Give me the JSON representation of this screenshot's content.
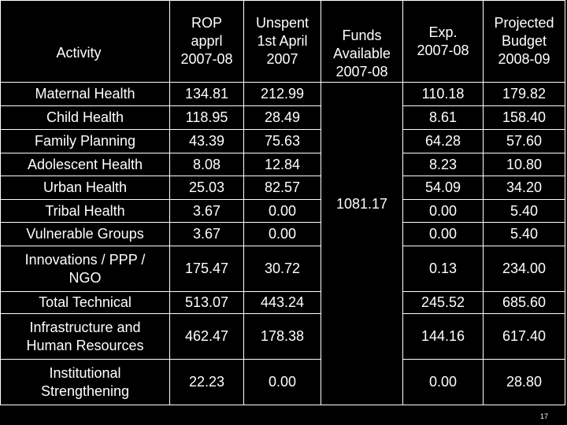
{
  "headers": {
    "activity": "Activity",
    "rop": [
      "ROP",
      "apprl",
      "2007-08"
    ],
    "unspent": [
      "Unspent",
      "1st April",
      "2007"
    ],
    "funds": [
      "Funds",
      "Available",
      "2007-08"
    ],
    "exp": [
      "Exp.",
      "2007-08"
    ],
    "projected": [
      "Projected",
      "Budget",
      "2008-09"
    ]
  },
  "funds_total": "1081.17",
  "rows": [
    {
      "activity": "Maternal Health",
      "rop": "134.81",
      "unspent": "212.99",
      "exp": "110.18",
      "projected": "179.82"
    },
    {
      "activity": "Child Health",
      "rop": "118.95",
      "unspent": "28.49",
      "exp": "8.61",
      "projected": "158.40"
    },
    {
      "activity": "Family Planning",
      "rop": "43.39",
      "unspent": "75.63",
      "exp": "64.28",
      "projected": "57.60"
    },
    {
      "activity": "Adolescent Health",
      "rop": "8.08",
      "unspent": "12.84",
      "exp": "8.23",
      "projected": "10.80"
    },
    {
      "activity": "Urban Health",
      "rop": "25.03",
      "unspent": "82.57",
      "exp": "54.09",
      "projected": "34.20"
    },
    {
      "activity": "Tribal Health",
      "rop": "3.67",
      "unspent": "0.00",
      "exp": "0.00",
      "projected": "5.40"
    },
    {
      "activity": "Vulnerable Groups",
      "rop": "3.67",
      "unspent": "0.00",
      "exp": "0.00",
      "projected": "5.40"
    },
    {
      "activity": "Innovations / PPP / NGO",
      "rop": "175.47",
      "unspent": "30.72",
      "exp": "0.13",
      "projected": "234.00"
    },
    {
      "activity": "Total Technical",
      "rop": "513.07",
      "unspent": "443.24",
      "exp": "245.52",
      "projected": "685.60"
    },
    {
      "activity": "Infrastructure and Human Resources",
      "rop": "462.47",
      "unspent": "178.38",
      "exp": "144.16",
      "projected": "617.40"
    },
    {
      "activity": "Institutional Strengthening",
      "rop": "22.23",
      "unspent": "0.00",
      "exp": "0.00",
      "projected": "28.80"
    }
  ],
  "page_number": "17"
}
